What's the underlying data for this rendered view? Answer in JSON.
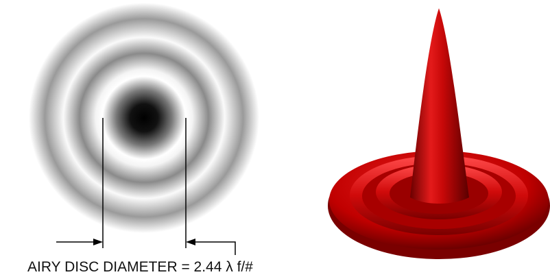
{
  "caption": {
    "text": "AIRY DISC DIAMETER = 2.44 λ f/#"
  }
}
